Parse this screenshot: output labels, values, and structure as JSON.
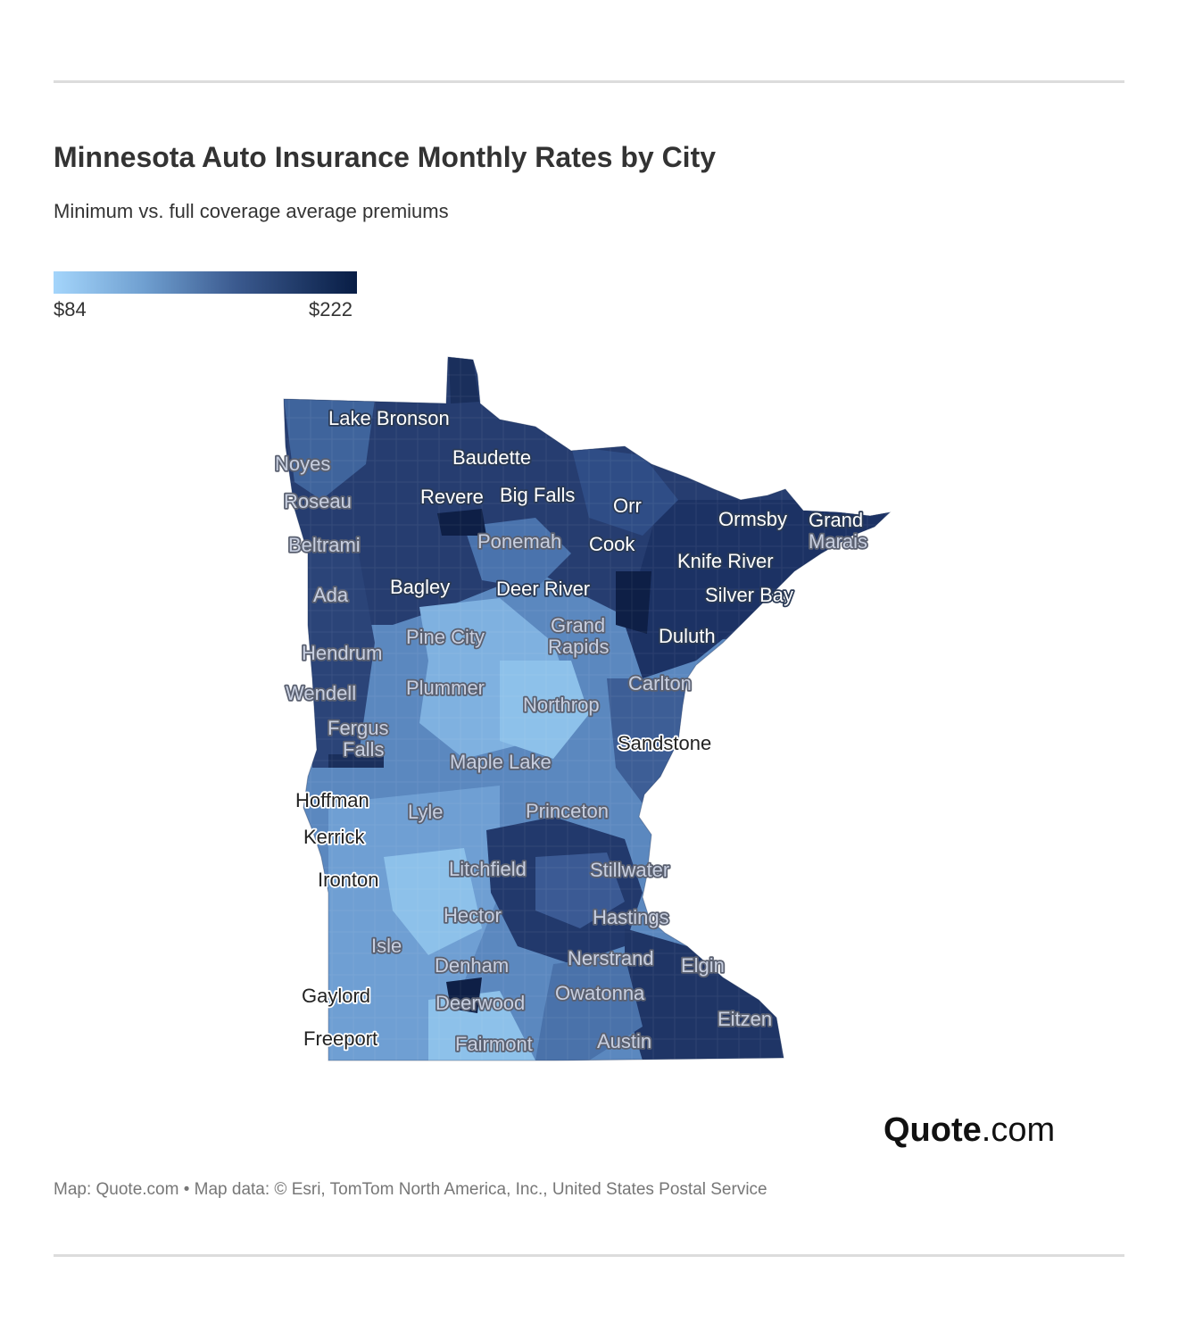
{
  "header": {
    "title": "Minnesota Auto Insurance Monthly Rates by City",
    "subtitle": "Minimum vs. full coverage average premiums"
  },
  "legend": {
    "min_label": "$84",
    "max_label": "$222",
    "color_low": "#a4d5fb",
    "color_high": "#081d45"
  },
  "map": {
    "region": "Minnesota",
    "shading": "monthly rate by ZIP area, light blue (low) to dark navy (high)",
    "colors": {
      "light": "#8dc1ea",
      "mid": "#5b88bf",
      "dark": "#263d70",
      "darkest": "#132650"
    },
    "cities": [
      {
        "name": "Lake Bronson"
      },
      {
        "name": "Baudette"
      },
      {
        "name": "Noyes"
      },
      {
        "name": "Roseau"
      },
      {
        "name": "Revere"
      },
      {
        "name": "Big Falls"
      },
      {
        "name": "Orr"
      },
      {
        "name": "Ormsby"
      },
      {
        "name": "Grand Marais"
      },
      {
        "name": "Beltrami"
      },
      {
        "name": "Ponemah"
      },
      {
        "name": "Cook"
      },
      {
        "name": "Knife River"
      },
      {
        "name": "Ada"
      },
      {
        "name": "Bagley"
      },
      {
        "name": "Deer River"
      },
      {
        "name": "Silver Bay"
      },
      {
        "name": "Grand Rapids"
      },
      {
        "name": "Pine City"
      },
      {
        "name": "Duluth"
      },
      {
        "name": "Hendrum"
      },
      {
        "name": "Wendell"
      },
      {
        "name": "Plummer"
      },
      {
        "name": "Carlton"
      },
      {
        "name": "Northrop"
      },
      {
        "name": "Fergus Falls"
      },
      {
        "name": "Sandstone"
      },
      {
        "name": "Maple Lake"
      },
      {
        "name": "Hoffman"
      },
      {
        "name": "Lyle"
      },
      {
        "name": "Princeton"
      },
      {
        "name": "Kerrick"
      },
      {
        "name": "Litchfield"
      },
      {
        "name": "Stillwater"
      },
      {
        "name": "Ironton"
      },
      {
        "name": "Hector"
      },
      {
        "name": "Hastings"
      },
      {
        "name": "Isle"
      },
      {
        "name": "Nerstrand"
      },
      {
        "name": "Denham"
      },
      {
        "name": "Elgin"
      },
      {
        "name": "Owatonna"
      },
      {
        "name": "Gaylord"
      },
      {
        "name": "Deerwood"
      },
      {
        "name": "Eitzen"
      },
      {
        "name": "Freeport"
      },
      {
        "name": "Fairmont"
      },
      {
        "name": "Austin"
      }
    ]
  },
  "brand": {
    "part1": "Quote",
    "part2": ".com"
  },
  "credits": "Map: Quote.com • Map data: © Esri, TomTom North America, Inc., United States Postal Service"
}
